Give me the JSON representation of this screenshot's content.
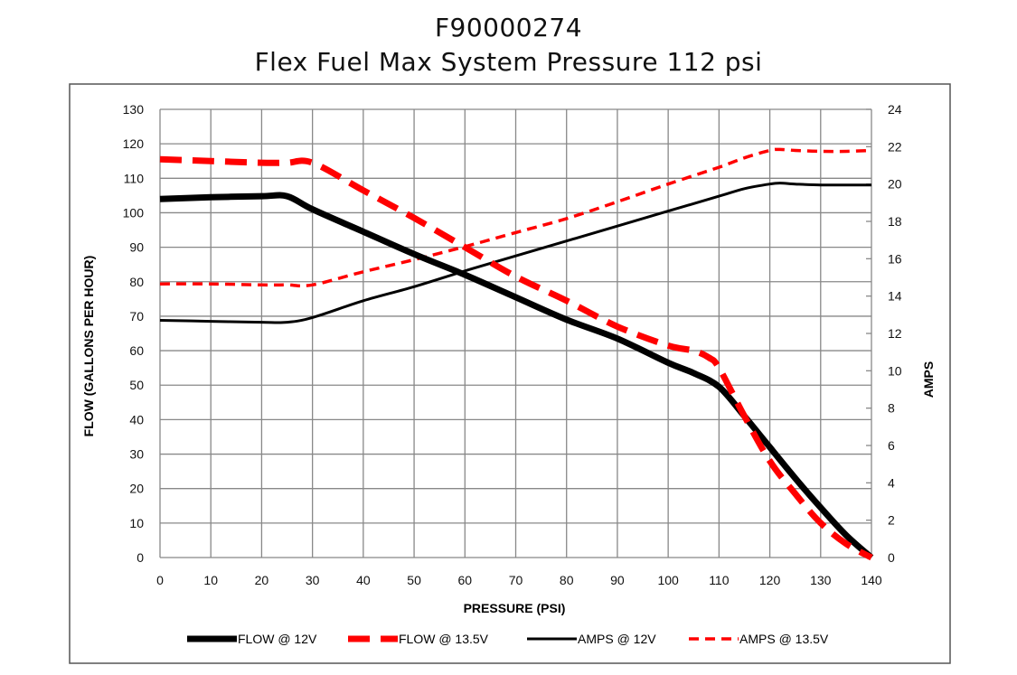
{
  "title": {
    "line1": "F90000274",
    "line2": "Flex Fuel Max System Pressure 112 psi"
  },
  "chart_data": {
    "type": "line",
    "title": "F90000274 Flex Fuel Max System Pressure 112 psi",
    "xlabel": "PRESSURE (PSI)",
    "ylabel": "FLOW (GALLONS PER HOUR)",
    "y2label": "AMPS",
    "xlim": [
      0,
      140
    ],
    "ylim": [
      0,
      130
    ],
    "y2lim": [
      0,
      24
    ],
    "grid": true,
    "legend_position": "bottom",
    "x_ticks": [
      0,
      10,
      20,
      30,
      40,
      50,
      60,
      70,
      80,
      90,
      100,
      110,
      120,
      130,
      140
    ],
    "y_ticks": [
      0,
      10,
      20,
      30,
      40,
      50,
      60,
      70,
      80,
      90,
      100,
      110,
      120,
      130
    ],
    "y2_ticks": [
      0,
      2,
      4,
      6,
      8,
      10,
      12,
      14,
      16,
      18,
      20,
      22,
      24
    ],
    "series": [
      {
        "name": "FLOW @ 12V",
        "axis": "left",
        "color": "#000000",
        "style": "thick-solid",
        "x": [
          0,
          10,
          20,
          25,
          30,
          40,
          50,
          60,
          70,
          80,
          90,
          100,
          105,
          110,
          115,
          120,
          125,
          130,
          135,
          140
        ],
        "y": [
          104,
          104.5,
          104.8,
          104.8,
          101,
          94.5,
          88,
          82,
          75.5,
          69,
          63.5,
          56.5,
          53.5,
          49.5,
          41,
          32,
          23,
          14.5,
          6.5,
          0
        ]
      },
      {
        "name": "FLOW @ 13.5V",
        "axis": "left",
        "color": "#ff0000",
        "style": "thick-dashed",
        "x": [
          0,
          10,
          20,
          25,
          30,
          40,
          50,
          60,
          70,
          80,
          90,
          100,
          105,
          108,
          110,
          115,
          120,
          125,
          130,
          135,
          140
        ],
        "y": [
          115.5,
          115,
          114.5,
          114.5,
          114.5,
          106.5,
          98.5,
          90,
          81.5,
          74.5,
          67,
          61.5,
          60,
          58,
          55,
          41,
          28,
          18.5,
          10,
          4,
          0
        ]
      },
      {
        "name": "AMPS @ 12V",
        "axis": "right",
        "color": "#000000",
        "style": "thin-solid",
        "x": [
          0,
          10,
          20,
          25,
          30,
          40,
          50,
          60,
          70,
          80,
          90,
          100,
          110,
          115,
          120,
          122,
          125,
          130,
          135,
          140
        ],
        "y": [
          12.7,
          12.65,
          12.6,
          12.6,
          12.85,
          13.75,
          14.5,
          15.35,
          16.15,
          16.95,
          17.75,
          18.55,
          19.35,
          19.75,
          20,
          20.05,
          20,
          19.95,
          19.95,
          19.95
        ]
      },
      {
        "name": "AMPS @ 13.5V",
        "axis": "right",
        "color": "#ff0000",
        "style": "thin-dashed",
        "x": [
          0,
          10,
          20,
          25,
          30,
          40,
          50,
          60,
          70,
          80,
          90,
          100,
          110,
          115,
          120,
          122,
          125,
          130,
          135,
          140
        ],
        "y": [
          14.65,
          14.65,
          14.6,
          14.6,
          14.6,
          15.3,
          15.95,
          16.65,
          17.4,
          18.15,
          19.05,
          20,
          20.9,
          21.4,
          21.8,
          21.85,
          21.8,
          21.75,
          21.75,
          21.8
        ]
      }
    ]
  }
}
